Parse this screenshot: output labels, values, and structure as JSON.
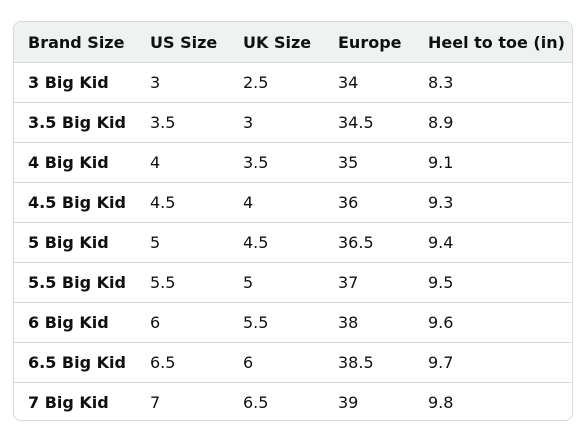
{
  "size_chart": {
    "headers": [
      "Brand Size",
      "US Size",
      "UK Size",
      "Europe",
      "Heel to toe (in)"
    ],
    "rows": [
      [
        "3 Big Kid",
        "3",
        "2.5",
        "34",
        "8.3"
      ],
      [
        "3.5 Big Kid",
        "3.5",
        "3",
        "34.5",
        "8.9"
      ],
      [
        "4 Big Kid",
        "4",
        "3.5",
        "35",
        "9.1"
      ],
      [
        "4.5 Big Kid",
        "4.5",
        "4",
        "36",
        "9.3"
      ],
      [
        "5 Big Kid",
        "5",
        "4.5",
        "36.5",
        "9.4"
      ],
      [
        "5.5 Big Kid",
        "5.5",
        "5",
        "37",
        "9.5"
      ],
      [
        "6 Big Kid",
        "6",
        "5.5",
        "38",
        "9.6"
      ],
      [
        "6.5 Big Kid",
        "6.5",
        "6",
        "38.5",
        "9.7"
      ],
      [
        "7 Big Kid",
        "7",
        "6.5",
        "39",
        "9.8"
      ]
    ]
  },
  "colors": {
    "header_background": "#f0f2f2",
    "border": "#d5d9d9",
    "text": "#0f1111"
  }
}
